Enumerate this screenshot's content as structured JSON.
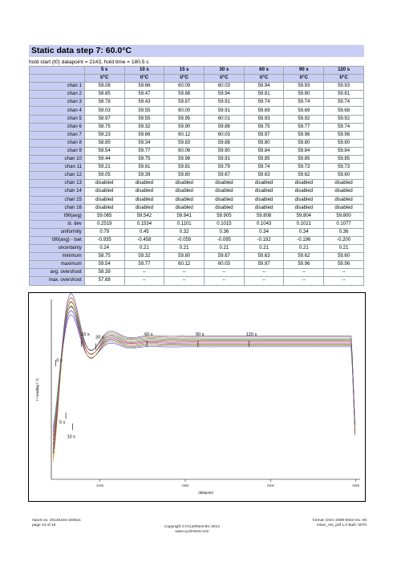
{
  "header": {
    "title": "Static data step 7: 60.0°C",
    "subtitle": "hold start (t0) datapoint = 2143, hold time = 180.5 s"
  },
  "table": {
    "columns": [
      "5 s",
      "10 s",
      "15 s",
      "30 s",
      "60 s",
      "90 s",
      "120 s"
    ],
    "unit": "t/°C",
    "rows": [
      {
        "label": "chan 1",
        "values": [
          "59.08",
          "59.66",
          "60.09",
          "60.03",
          "59.94",
          "59.93",
          "59.93"
        ]
      },
      {
        "label": "chan 2",
        "values": [
          "58.85",
          "59.47",
          "59.88",
          "59.94",
          "59.81",
          "59.80",
          "59.81"
        ]
      },
      {
        "label": "chan 3",
        "values": [
          "58.78",
          "59.43",
          "59.87",
          "59.91",
          "59.74",
          "59.74",
          "59.74"
        ]
      },
      {
        "label": "chan 4",
        "values": [
          "59.03",
          "59.55",
          "60.00",
          "59.91",
          "59.69",
          "59.69",
          "59.68"
        ]
      },
      {
        "label": "chan 5",
        "values": [
          "58.97",
          "59.55",
          "59.95",
          "60.01",
          "59.93",
          "59.92",
          "59.92"
        ]
      },
      {
        "label": "chan 6",
        "values": [
          "58.75",
          "59.32",
          "59.90",
          "59.88",
          "59.75",
          "59.77",
          "59.74"
        ]
      },
      {
        "label": "chan 7",
        "values": [
          "59.23",
          "59.66",
          "60.12",
          "60.03",
          "59.97",
          "59.96",
          "59.96"
        ]
      },
      {
        "label": "chan 8",
        "values": [
          "58.85",
          "59.34",
          "59.83",
          "59.88",
          "59.80",
          "59.80",
          "59.80"
        ]
      },
      {
        "label": "chan 9",
        "values": [
          "59.54",
          "59.77",
          "60.06",
          "59.90",
          "59.84",
          "59.84",
          "59.84"
        ]
      },
      {
        "label": "chan 10",
        "values": [
          "59.44",
          "59.75",
          "59.98",
          "59.91",
          "59.85",
          "59.85",
          "59.85"
        ]
      },
      {
        "label": "chan 11",
        "values": [
          "59.21",
          "59.61",
          "59.81",
          "59.79",
          "59.74",
          "59.73",
          "59.73"
        ]
      },
      {
        "label": "chan 12",
        "values": [
          "59.05",
          "59.39",
          "59.80",
          "59.67",
          "59.63",
          "59.62",
          "59.60"
        ]
      },
      {
        "label": "chan 13",
        "values": [
          "disabled",
          "disabled",
          "disabled",
          "disabled",
          "disabled",
          "disabled",
          "disabled"
        ]
      },
      {
        "label": "chan 14",
        "values": [
          "disabled",
          "disabled",
          "disabled",
          "disabled",
          "disabled",
          "disabled",
          "disabled"
        ]
      },
      {
        "label": "chan 15",
        "values": [
          "disabled",
          "disabled",
          "disabled",
          "disabled",
          "disabled",
          "disabled",
          "disabled"
        ]
      },
      {
        "label": "chan 16",
        "values": [
          "disabled",
          "disabled",
          "disabled",
          "disabled",
          "disabled",
          "disabled",
          "disabled"
        ]
      },
      {
        "label": "t90(avg)",
        "values": [
          "59.065",
          "59.542",
          "59.941",
          "59.905",
          "59.808",
          "59.804",
          "59.800"
        ]
      },
      {
        "label": "st. dev",
        "values": [
          "0.2519",
          "0.1534",
          "0.1101",
          "0.1015",
          "0.1043",
          "0.1021",
          "0.1077"
        ]
      },
      {
        "label": "uniformity",
        "values": [
          "0.79",
          "0.45",
          "0.32",
          "0.36",
          "0.34",
          "0.34",
          "0.36"
        ]
      },
      {
        "label": "t90(avg) - tset",
        "values": [
          "-0.935",
          "-0.458",
          "-0.059",
          "-0.095",
          "-0.192",
          "-0.196",
          "-0.200"
        ]
      },
      {
        "label": "uncertainty",
        "values": [
          "0.24",
          "0.21",
          "0.21",
          "0.21",
          "0.21",
          "0.21",
          "0.21"
        ]
      },
      {
        "label": "minimum",
        "values": [
          "58.75",
          "59.32",
          "59.80",
          "59.67",
          "59.63",
          "59.62",
          "59.60"
        ]
      },
      {
        "label": "maximum",
        "values": [
          "59.54",
          "59.77",
          "60.12",
          "60.03",
          "59.97",
          "59.96",
          "59.96"
        ]
      },
      {
        "label": "avg. overshoot",
        "values": [
          "58.39",
          "--",
          "--",
          "--",
          "--",
          "--",
          "--"
        ]
      },
      {
        "label": "max. overshoot",
        "values": [
          "57.68",
          "--",
          "--",
          "--",
          "--",
          "--",
          "--"
        ]
      }
    ]
  },
  "chart_data": {
    "type": "line",
    "xlabel": "datapoint",
    "ylabel": "t / reading / °C",
    "xlim": [
      2143,
      2505
    ],
    "ylim": [
      55,
      61.5
    ],
    "x_ticks": [
      "2200",
      "2300",
      "2400",
      "2500"
    ],
    "marker_labels": [
      "0 s",
      "5 s",
      "10 s",
      "15 s",
      "30 s",
      "60 s",
      "90 s",
      "120 s"
    ],
    "series_colors": [
      "#2b2bd0",
      "#d02020",
      "#1a8a1a",
      "#c08000",
      "#8a2be2",
      "#b03030",
      "#606060",
      "#d07020",
      "#2090a0",
      "#a0a020",
      "#c06080",
      "#404090"
    ]
  },
  "footer": {
    "left_line1": "report no: 20130103-100521",
    "left_line2": "page 13 of 16",
    "center_line1": "Copyright CYCLERtest BV 2013",
    "center_line2": "www.cyclertest.com",
    "right_line1": "format: DOC-2009-0044 rev. 06",
    "right_line2": "mtaci_res_pdf 1.0 Built: 0070"
  }
}
